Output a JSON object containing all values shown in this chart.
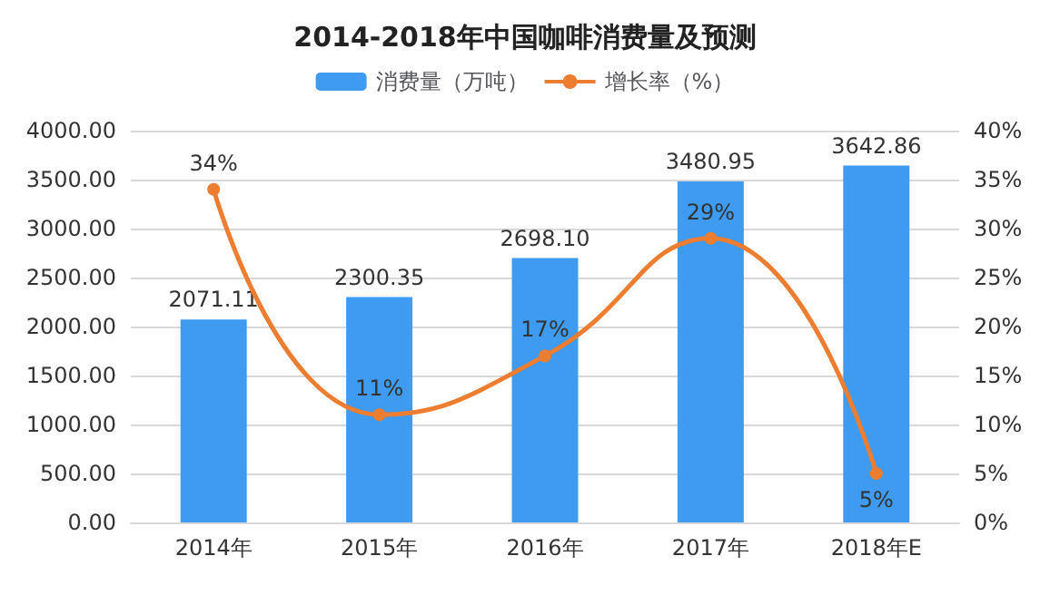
{
  "chart_data": {
    "type": "bar",
    "title": "2014-2018年中国咖啡消费量及预测",
    "categories": [
      "2014年",
      "2015年",
      "2016年",
      "2017年",
      "2018年E"
    ],
    "series": [
      {
        "name": "消费量（万吨）",
        "color": "#3e9bf0",
        "values": [
          2071.11,
          2300.35,
          2698.1,
          3480.95,
          3642.86
        ],
        "value_labels": [
          "2071.11",
          "2300.35",
          "2698.10",
          "3480.95",
          "3642.86"
        ]
      },
      {
        "name": "增长率（%）",
        "type": "line",
        "axis": "y2",
        "color": "#ed7d31",
        "marker": "circle",
        "values": [
          34,
          11,
          17,
          29,
          5
        ],
        "value_labels": [
          "34%",
          "11%",
          "17%",
          "29%",
          "5%"
        ]
      }
    ],
    "ylim": [
      0,
      4000
    ],
    "yticks": [
      {
        "value": 0,
        "label": "0.00"
      },
      {
        "value": 500,
        "label": "500.00"
      },
      {
        "value": 1000,
        "label": "1000.00"
      },
      {
        "value": 1500,
        "label": "1500.00"
      },
      {
        "value": 2000,
        "label": "2000.00"
      },
      {
        "value": 2500,
        "label": "2500.00"
      },
      {
        "value": 3000,
        "label": "3000.00"
      },
      {
        "value": 3500,
        "label": "3500.00"
      },
      {
        "value": 4000,
        "label": "4000.00"
      }
    ],
    "y2lim": [
      0,
      40
    ],
    "y2ticks": [
      {
        "value": 0,
        "label": "0%"
      },
      {
        "value": 5,
        "label": "5%"
      },
      {
        "value": 10,
        "label": "10%"
      },
      {
        "value": 15,
        "label": "15%"
      },
      {
        "value": 20,
        "label": "20%"
      },
      {
        "value": 25,
        "label": "25%"
      },
      {
        "value": 30,
        "label": "30%"
      },
      {
        "value": 35,
        "label": "35%"
      },
      {
        "value": 40,
        "label": "40%"
      }
    ],
    "grid": "y",
    "legend": "top"
  }
}
